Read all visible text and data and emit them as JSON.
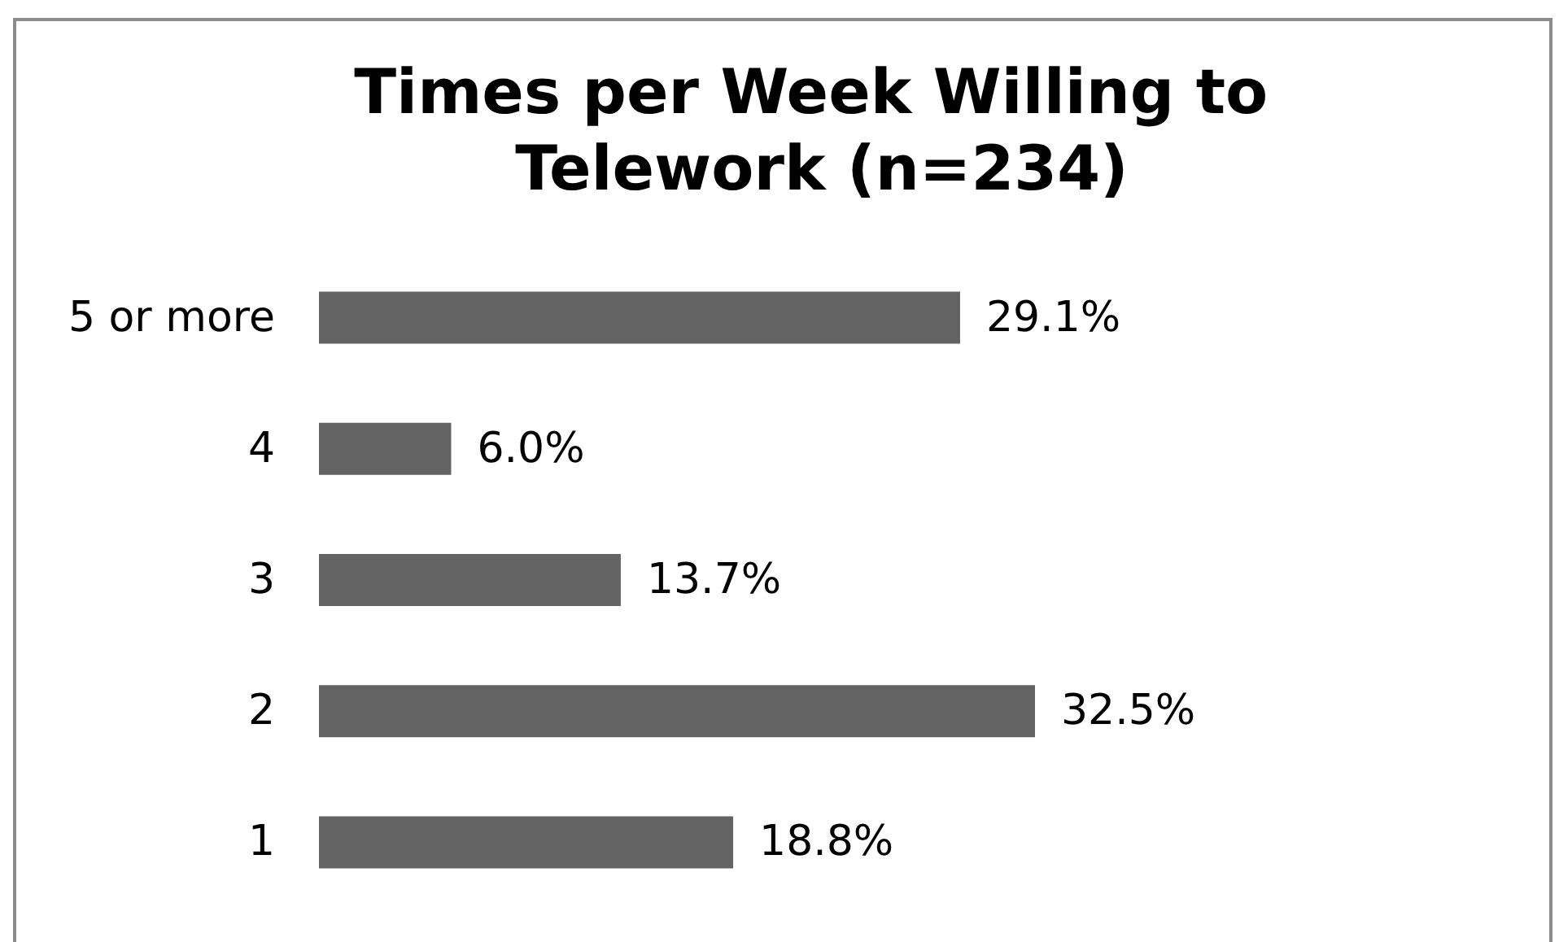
{
  "chart_data": {
    "type": "bar",
    "orientation": "horizontal",
    "title": "Times per Week Willing to Telework (n=234)",
    "categories": [
      "5 or more",
      "4",
      "3",
      "2",
      "1"
    ],
    "values": [
      29.1,
      6.0,
      13.7,
      32.5,
      18.8
    ],
    "value_labels": [
      "29.1%",
      "6.0%",
      "13.7%",
      "32.5%",
      "18.8%"
    ],
    "color": "#636363",
    "tick_labels": "y"
  }
}
